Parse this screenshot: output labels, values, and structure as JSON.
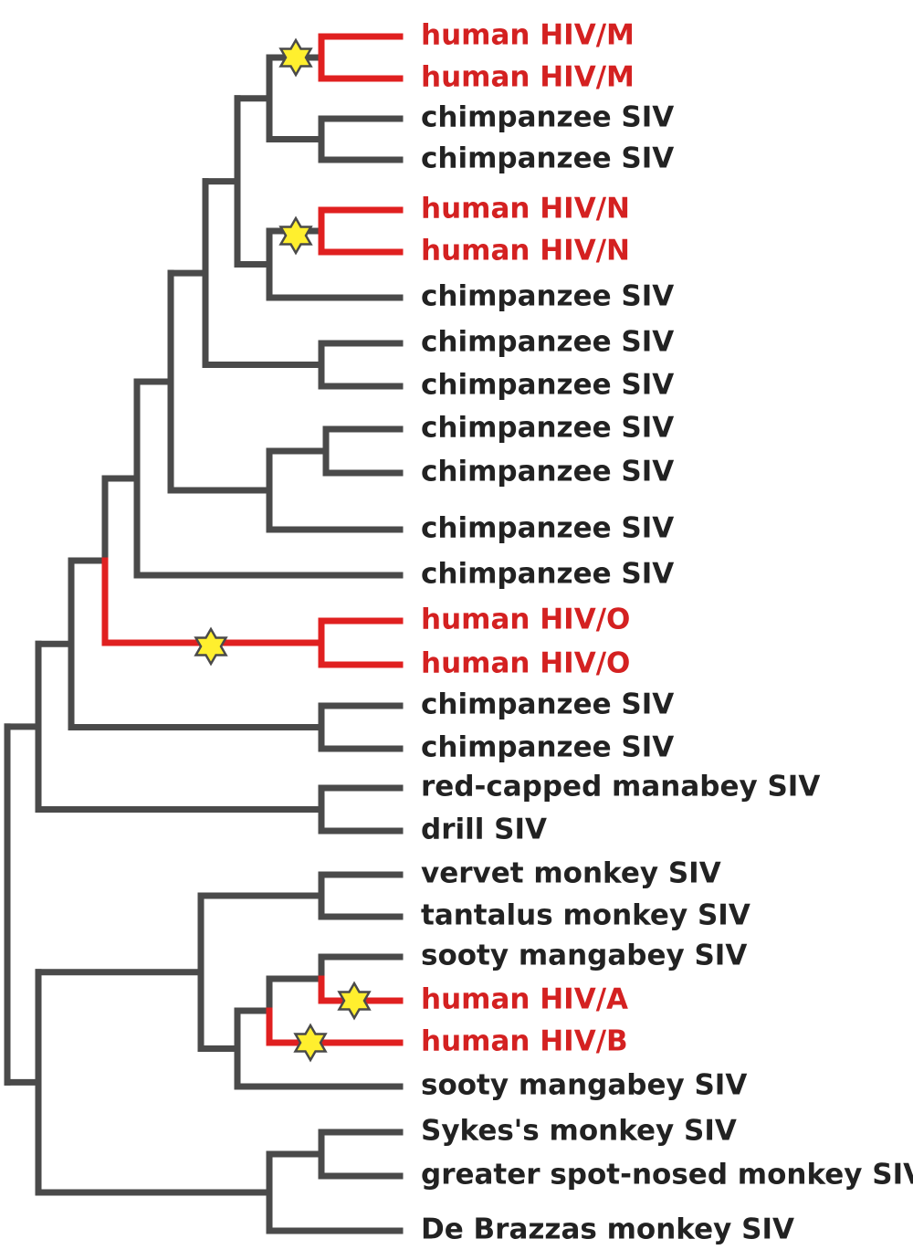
{
  "colors": {
    "branch": "#4a4a4a",
    "human_branch": "#e02020",
    "label_default": "#222222",
    "label_human": "#d42121",
    "star_fill": "#ffef2e",
    "star_stroke": "#4a4a4a"
  },
  "leaves": [
    {
      "label": "human HIV/M",
      "human": true
    },
    {
      "label": "human HIV/M",
      "human": true
    },
    {
      "label": "chimpanzee SIV",
      "human": false
    },
    {
      "label": "chimpanzee SIV",
      "human": false
    },
    {
      "label": "human HIV/N",
      "human": true
    },
    {
      "label": "human HIV/N",
      "human": true
    },
    {
      "label": "chimpanzee SIV",
      "human": false
    },
    {
      "label": "chimpanzee SIV",
      "human": false
    },
    {
      "label": "chimpanzee SIV",
      "human": false
    },
    {
      "label": "chimpanzee SIV",
      "human": false
    },
    {
      "label": "chimpanzee SIV",
      "human": false
    },
    {
      "label": "chimpanzee SIV",
      "human": false
    },
    {
      "label": "chimpanzee SIV",
      "human": false
    },
    {
      "label": "human HIV/O",
      "human": true
    },
    {
      "label": "human HIV/O",
      "human": true
    },
    {
      "label": "chimpanzee SIV",
      "human": false
    },
    {
      "label": "chimpanzee SIV",
      "human": false
    },
    {
      "label": "red-capped manabey SIV",
      "human": false
    },
    {
      "label": "drill SIV",
      "human": false
    },
    {
      "label": "vervet monkey SIV",
      "human": false
    },
    {
      "label": "tantalus monkey SIV",
      "human": false
    },
    {
      "label": "sooty mangabey SIV",
      "human": false
    },
    {
      "label": "human HIV/A",
      "human": true
    },
    {
      "label": "human HIV/B",
      "human": true
    },
    {
      "label": "sooty mangabey SIV",
      "human": false
    },
    {
      "label": "Sykes's monkey SIV",
      "human": false
    },
    {
      "label": "greater spot-nosed monkey SIV",
      "human": false
    },
    {
      "label": "De Brazzas monkey SIV",
      "human": false
    }
  ],
  "cross_species_transmissions": [
    {
      "clade": "human HIV/M"
    },
    {
      "clade": "human HIV/N"
    },
    {
      "clade": "human HIV/O"
    },
    {
      "clade": "human HIV/A"
    },
    {
      "clade": "human HIV/B"
    }
  ]
}
